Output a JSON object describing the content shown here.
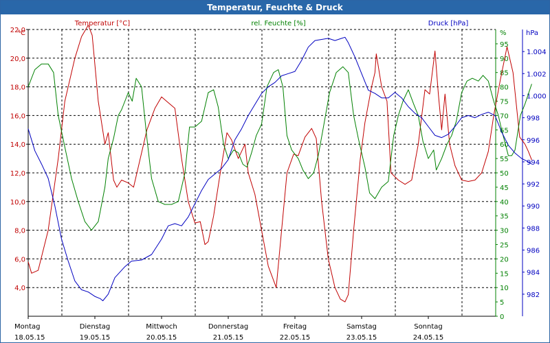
{
  "window": {
    "title": "Temperatur, Feuchte & Druck"
  },
  "chart_data": {
    "type": "line",
    "x_categories": [
      {
        "day": "Montag",
        "date": "18.05.15"
      },
      {
        "day": "Dienstag",
        "date": "19.05.15"
      },
      {
        "day": "Mittwoch",
        "date": "20.05.15"
      },
      {
        "day": "Donnerstag",
        "date": "21.05.15"
      },
      {
        "day": "Freitag",
        "date": "22.05.15"
      },
      {
        "day": "Samstag",
        "date": "23.05.15"
      },
      {
        "day": "Sonntag",
        "date": "24.05.15"
      }
    ],
    "x_range_days": [
      0,
      7
    ],
    "axes": {
      "temperature": {
        "label": "Temperatur [°C]",
        "unit": "°C",
        "min": 2,
        "max": 22,
        "ticks": [
          "4,0",
          "6,0",
          "8,0",
          "10,0",
          "12,0",
          "14,0",
          "16,0",
          "18,0",
          "20,0",
          "22,0"
        ],
        "color": "#c00000"
      },
      "humidity": {
        "label": "rel. Feuchte [%]",
        "unit": "%",
        "min": 0,
        "max": 100,
        "ticks": [
          "0",
          "5",
          "10",
          "15",
          "20",
          "25",
          "30",
          "35",
          "40",
          "45",
          "50",
          "55",
          "60",
          "65",
          "70",
          "75",
          "80",
          "85",
          "90",
          "95"
        ],
        "color": "#008000"
      },
      "pressure": {
        "label": "Druck [hPa]",
        "unit": "hPa",
        "min": 980,
        "max": 1006,
        "ticks": [
          "982",
          "984",
          "986",
          "988",
          "990",
          "992",
          "994",
          "996",
          "998",
          "1.000",
          "1.002",
          "1.004"
        ],
        "color": "#0000c0"
      }
    },
    "grid": true,
    "series": [
      {
        "name": "Temperatur [°C]",
        "axis": "temperature",
        "color": "#c00000",
        "points": [
          [
            0,
            5.8
          ],
          [
            0.05,
            5.0
          ],
          [
            0.15,
            5.2
          ],
          [
            0.3,
            8
          ],
          [
            0.45,
            13
          ],
          [
            0.55,
            17
          ],
          [
            0.7,
            20
          ],
          [
            0.8,
            21.5
          ],
          [
            0.9,
            22.3
          ],
          [
            0.96,
            21.6
          ],
          [
            1.05,
            17
          ],
          [
            1.15,
            14
          ],
          [
            1.2,
            14.8
          ],
          [
            1.28,
            11.5
          ],
          [
            1.33,
            11
          ],
          [
            1.4,
            11.5
          ],
          [
            1.5,
            11.3
          ],
          [
            1.58,
            11
          ],
          [
            1.68,
            13
          ],
          [
            1.78,
            15
          ],
          [
            1.9,
            16.5
          ],
          [
            2.0,
            17.3
          ],
          [
            2.1,
            16.9
          ],
          [
            2.2,
            16.5
          ],
          [
            2.3,
            13
          ],
          [
            2.4,
            10
          ],
          [
            2.5,
            8.5
          ],
          [
            2.58,
            8.6
          ],
          [
            2.65,
            7.0
          ],
          [
            2.7,
            7.2
          ],
          [
            2.78,
            9
          ],
          [
            2.88,
            12
          ],
          [
            2.98,
            14.8
          ],
          [
            3.05,
            14.3
          ],
          [
            3.15,
            13
          ],
          [
            3.25,
            14
          ],
          [
            3.3,
            12
          ],
          [
            3.4,
            10.5
          ],
          [
            3.5,
            8
          ],
          [
            3.6,
            5.5
          ],
          [
            3.72,
            4.0
          ],
          [
            3.8,
            8
          ],
          [
            3.88,
            12
          ],
          [
            3.98,
            13.3
          ],
          [
            4.05,
            13.2
          ],
          [
            4.15,
            14.5
          ],
          [
            4.25,
            15.1
          ],
          [
            4.32,
            14.4
          ],
          [
            4.4,
            10
          ],
          [
            4.5,
            6
          ],
          [
            4.6,
            4
          ],
          [
            4.68,
            3.2
          ],
          [
            4.75,
            3.0
          ],
          [
            4.8,
            3.5
          ],
          [
            4.88,
            8
          ],
          [
            4.98,
            13
          ],
          [
            5.05,
            15.5
          ],
          [
            5.15,
            18
          ],
          [
            5.2,
            19
          ],
          [
            5.22,
            20.3
          ],
          [
            5.3,
            18
          ],
          [
            5.38,
            17
          ],
          [
            5.44,
            12
          ],
          [
            5.55,
            11.5
          ],
          [
            5.65,
            11.2
          ],
          [
            5.75,
            11.5
          ],
          [
            5.85,
            14
          ],
          [
            5.95,
            17.8
          ],
          [
            6.02,
            17.5
          ],
          [
            6.1,
            20.5
          ],
          [
            6.15,
            17.5
          ],
          [
            6.2,
            15
          ],
          [
            6.25,
            17.5
          ],
          [
            6.32,
            14
          ],
          [
            6.4,
            12.5
          ],
          [
            6.5,
            11.5
          ],
          [
            6.6,
            11.4
          ],
          [
            6.7,
            11.5
          ],
          [
            6.8,
            12
          ],
          [
            6.9,
            13.5
          ],
          [
            6.98,
            16
          ],
          [
            7.08,
            18.5
          ],
          [
            7.18,
            20.8
          ],
          [
            7.27,
            19
          ],
          [
            7.37,
            14.5
          ],
          [
            7.45,
            14
          ],
          [
            7.5,
            13.5
          ],
          [
            7.55,
            12.9
          ]
        ]
      },
      {
        "name": "rel. Feuchte [%]",
        "axis": "humidity",
        "color": "#008000",
        "points": [
          [
            0,
            80
          ],
          [
            0.1,
            86
          ],
          [
            0.2,
            88
          ],
          [
            0.3,
            88
          ],
          [
            0.38,
            85
          ],
          [
            0.45,
            70
          ],
          [
            0.55,
            59
          ],
          [
            0.65,
            48
          ],
          [
            0.75,
            40
          ],
          [
            0.85,
            33
          ],
          [
            0.95,
            30
          ],
          [
            1.05,
            33
          ],
          [
            1.15,
            45
          ],
          [
            1.2,
            55
          ],
          [
            1.28,
            62
          ],
          [
            1.35,
            70
          ],
          [
            1.4,
            72
          ],
          [
            1.45,
            75
          ],
          [
            1.5,
            78
          ],
          [
            1.56,
            75
          ],
          [
            1.62,
            83
          ],
          [
            1.7,
            80
          ],
          [
            1.78,
            62
          ],
          [
            1.85,
            48
          ],
          [
            1.95,
            40
          ],
          [
            2.05,
            39
          ],
          [
            2.15,
            39
          ],
          [
            2.25,
            40
          ],
          [
            2.35,
            50
          ],
          [
            2.42,
            66
          ],
          [
            2.5,
            66
          ],
          [
            2.6,
            68
          ],
          [
            2.7,
            78
          ],
          [
            2.78,
            79
          ],
          [
            2.85,
            73
          ],
          [
            2.93,
            60
          ],
          [
            3.0,
            55
          ],
          [
            3.08,
            58
          ],
          [
            3.15,
            57
          ],
          [
            3.22,
            53
          ],
          [
            3.28,
            52
          ],
          [
            3.35,
            57
          ],
          [
            3.42,
            63
          ],
          [
            3.5,
            67
          ],
          [
            3.58,
            80
          ],
          [
            3.68,
            85
          ],
          [
            3.75,
            86
          ],
          [
            3.82,
            80
          ],
          [
            3.88,
            63
          ],
          [
            3.95,
            58
          ],
          [
            4.05,
            55
          ],
          [
            4.12,
            51
          ],
          [
            4.2,
            48
          ],
          [
            4.28,
            50
          ],
          [
            4.35,
            56
          ],
          [
            4.42,
            65
          ],
          [
            4.52,
            78
          ],
          [
            4.62,
            85
          ],
          [
            4.72,
            87
          ],
          [
            4.8,
            85
          ],
          [
            4.88,
            70
          ],
          [
            4.95,
            62
          ],
          [
            5.05,
            52
          ],
          [
            5.12,
            43
          ],
          [
            5.2,
            41
          ],
          [
            5.3,
            45
          ],
          [
            5.4,
            47
          ],
          [
            5.48,
            63
          ],
          [
            5.55,
            70
          ],
          [
            5.62,
            75
          ],
          [
            5.7,
            79
          ],
          [
            5.78,
            74
          ],
          [
            5.85,
            70
          ],
          [
            5.92,
            61
          ],
          [
            6.0,
            55
          ],
          [
            6.08,
            58
          ],
          [
            6.12,
            51
          ],
          [
            6.2,
            55
          ],
          [
            6.28,
            60
          ],
          [
            6.35,
            63
          ],
          [
            6.42,
            68
          ],
          [
            6.5,
            78
          ],
          [
            6.58,
            82
          ],
          [
            6.66,
            83
          ],
          [
            6.75,
            82
          ],
          [
            6.82,
            84
          ],
          [
            6.9,
            82
          ],
          [
            6.98,
            75
          ],
          [
            7.05,
            70
          ],
          [
            7.1,
            65
          ],
          [
            7.2,
            56
          ],
          [
            7.25,
            56
          ],
          [
            7.3,
            58
          ],
          [
            7.38,
            70
          ],
          [
            7.45,
            74
          ],
          [
            7.55,
            81
          ]
        ]
      },
      {
        "name": "Druck [hPa]",
        "axis": "pressure",
        "color": "#0000c0",
        "points": [
          [
            0,
            997
          ],
          [
            0.1,
            995
          ],
          [
            0.2,
            993.8
          ],
          [
            0.3,
            992.5
          ],
          [
            0.4,
            990
          ],
          [
            0.5,
            987
          ],
          [
            0.6,
            985
          ],
          [
            0.7,
            983.2
          ],
          [
            0.8,
            982.4
          ],
          [
            0.9,
            982.2
          ],
          [
            1.0,
            981.8
          ],
          [
            1.08,
            981.6
          ],
          [
            1.12,
            981.4
          ],
          [
            1.2,
            982
          ],
          [
            1.3,
            983.5
          ],
          [
            1.45,
            984.5
          ],
          [
            1.55,
            985
          ],
          [
            1.7,
            985.1
          ],
          [
            1.85,
            985.6
          ],
          [
            2.0,
            987
          ],
          [
            2.1,
            988.2
          ],
          [
            2.2,
            988.4
          ],
          [
            2.3,
            988.2
          ],
          [
            2.4,
            989
          ],
          [
            2.5,
            990.2
          ],
          [
            2.6,
            991.4
          ],
          [
            2.7,
            992.4
          ],
          [
            2.8,
            992.9
          ],
          [
            2.9,
            993.4
          ],
          [
            3.0,
            994.2
          ],
          [
            3.1,
            996
          ],
          [
            3.2,
            997
          ],
          [
            3.3,
            998.2
          ],
          [
            3.4,
            999.2
          ],
          [
            3.5,
            1000.2
          ],
          [
            3.6,
            1000.8
          ],
          [
            3.7,
            1001.2
          ],
          [
            3.8,
            1001.8
          ],
          [
            3.9,
            1002
          ],
          [
            4.0,
            1002.2
          ],
          [
            4.1,
            1003.2
          ],
          [
            4.2,
            1004.4
          ],
          [
            4.3,
            1005
          ],
          [
            4.4,
            1005.1
          ],
          [
            4.5,
            1005.2
          ],
          [
            4.6,
            1005
          ],
          [
            4.7,
            1005.2
          ],
          [
            4.75,
            1005.3
          ],
          [
            4.8,
            1004.8
          ],
          [
            4.9,
            1003.5
          ],
          [
            5.0,
            1002
          ],
          [
            5.1,
            1000.5
          ],
          [
            5.2,
            1000.2
          ],
          [
            5.3,
            999.8
          ],
          [
            5.4,
            999.8
          ],
          [
            5.5,
            1000.3
          ],
          [
            5.6,
            999.8
          ],
          [
            5.7,
            999
          ],
          [
            5.8,
            998.4
          ],
          [
            5.9,
            998
          ],
          [
            6.0,
            997.2
          ],
          [
            6.1,
            996.4
          ],
          [
            6.2,
            996.2
          ],
          [
            6.3,
            996.5
          ],
          [
            6.4,
            997.2
          ],
          [
            6.5,
            998
          ],
          [
            6.6,
            998.2
          ],
          [
            6.7,
            998
          ],
          [
            6.8,
            998.3
          ],
          [
            6.9,
            998.5
          ],
          [
            7.0,
            998.2
          ],
          [
            7.1,
            996.7
          ],
          [
            7.2,
            995.5
          ],
          [
            7.3,
            994.8
          ],
          [
            7.4,
            994.3
          ],
          [
            7.5,
            994
          ],
          [
            7.55,
            993.8
          ]
        ]
      }
    ]
  }
}
